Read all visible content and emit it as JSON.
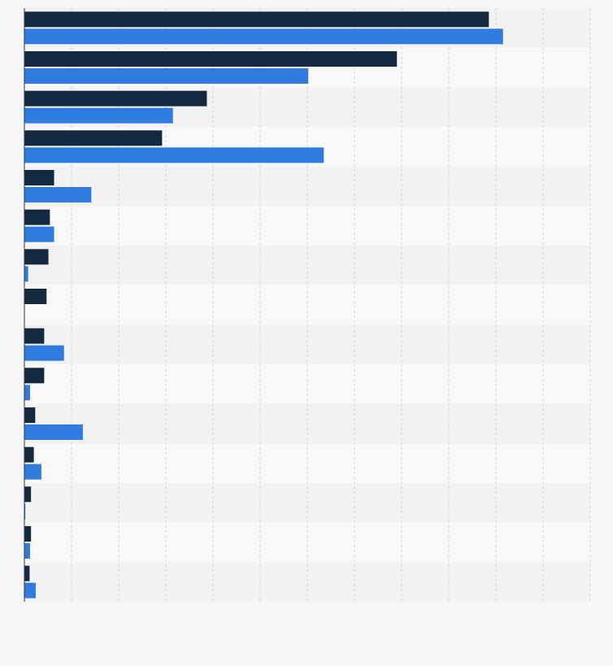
{
  "chart_data": {
    "type": "bar",
    "orientation": "horizontal",
    "title": "",
    "xlabel": "",
    "ylabel": "",
    "categories": [
      "",
      "",
      "",
      "",
      "",
      "",
      "",
      "",
      "",
      "",
      "",
      "",
      "",
      "",
      ""
    ],
    "series": [
      {
        "color": "#14283f",
        "values": [
          98.5,
          79,
          38.7,
          29.2,
          6.3,
          5.4,
          5.1,
          4.7,
          4.2,
          4.2,
          2.3,
          2,
          1.4,
          1.4,
          1.1
        ]
      },
      {
        "color": "#2f7be0",
        "values": [
          101.5,
          60.2,
          31.5,
          63.5,
          14.2,
          6.3,
          0.8,
          0,
          8.4,
          1.2,
          12.4,
          3.6,
          0.2,
          1.2,
          2.4
        ]
      }
    ],
    "xlim": [
      0,
      120
    ],
    "x_gridlines": [
      0,
      10,
      20,
      30,
      40,
      50,
      60,
      70,
      80,
      90,
      100,
      110,
      120
    ],
    "grid": true,
    "legend": "none"
  }
}
